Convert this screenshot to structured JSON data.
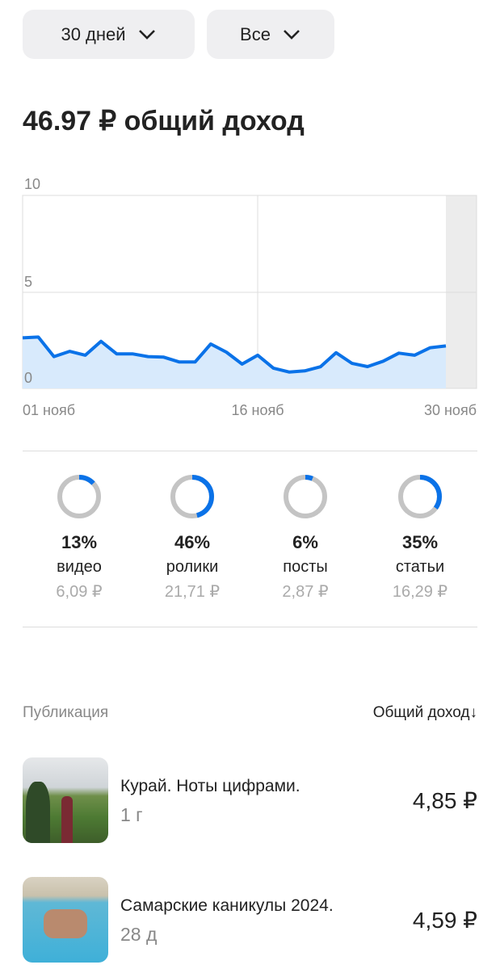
{
  "filters": {
    "period": "30 дней",
    "type": "Все"
  },
  "total": {
    "title": "46.97 ₽ общий доход"
  },
  "chart_data": {
    "type": "area",
    "title": "",
    "xlabel": "",
    "ylabel": "",
    "ylim": [
      0,
      10
    ],
    "y_ticks": [
      "0",
      "5",
      "10"
    ],
    "x_ticks": [
      "01 нояб",
      "16 нояб",
      "30 нояб"
    ],
    "grid": true,
    "color": "#0a72e8",
    "fill": "#d8eafc",
    "values": [
      2.62,
      2.66,
      1.65,
      1.92,
      1.72,
      2.44,
      1.79,
      1.79,
      1.65,
      1.62,
      1.37,
      1.37,
      2.3,
      1.88,
      1.26,
      1.72,
      1.05,
      0.85,
      0.91,
      1.12,
      1.85,
      1.3,
      1.13,
      1.41,
      1.83,
      1.72,
      2.11,
      2.2
    ]
  },
  "breakdown": [
    {
      "pct": "13%",
      "value": 13,
      "label": "видео",
      "amount": "6,09 ₽"
    },
    {
      "pct": "46%",
      "value": 46,
      "label": "ролики",
      "amount": "21,71 ₽"
    },
    {
      "pct": "6%",
      "value": 6,
      "label": "посты",
      "amount": "2,87 ₽"
    },
    {
      "pct": "35%",
      "value": 35,
      "label": "статьи",
      "amount": "16,29 ₽"
    }
  ],
  "table": {
    "col_publication": "Публикация",
    "col_income": "Общий доход↓"
  },
  "publications": [
    {
      "title": "Курай. Ноты цифрами.",
      "age": "1 г",
      "income": "4,85 ₽"
    },
    {
      "title": "Самарские каникулы 2024.",
      "age": "28 д",
      "income": "4,59 ₽"
    }
  ],
  "colors": {
    "accent": "#0a72e8",
    "ring": "#c4c4c4"
  }
}
